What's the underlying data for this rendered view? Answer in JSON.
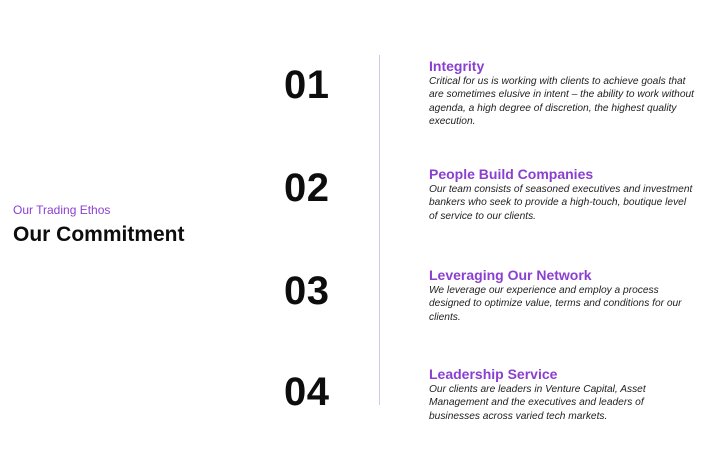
{
  "intro": {
    "eyebrow": "Our Trading Ethos",
    "title": "Our Commitment"
  },
  "accent_color": "#8b3fd0",
  "items": [
    {
      "number": "01",
      "heading": "Integrity",
      "description": "Critical for us is working with clients to achieve goals that are sometimes elusive in intent – the ability to work without agenda, a high degree of discretion, the highest quality execution."
    },
    {
      "number": "02",
      "heading": "People Build Companies",
      "description": "Our team consists of seasoned executives and investment bankers who seek to provide a high-touch, boutique level of service to our clients."
    },
    {
      "number": "03",
      "heading": "Leveraging Our Network",
      "description": "We leverage our experience and employ a process designed to optimize value, terms and conditions for our clients."
    },
    {
      "number": "04",
      "heading": "Leadership Service",
      "description": "Our clients are leaders in Venture Capital, Asset Management and the executives and leaders of businesses across varied tech markets."
    }
  ]
}
